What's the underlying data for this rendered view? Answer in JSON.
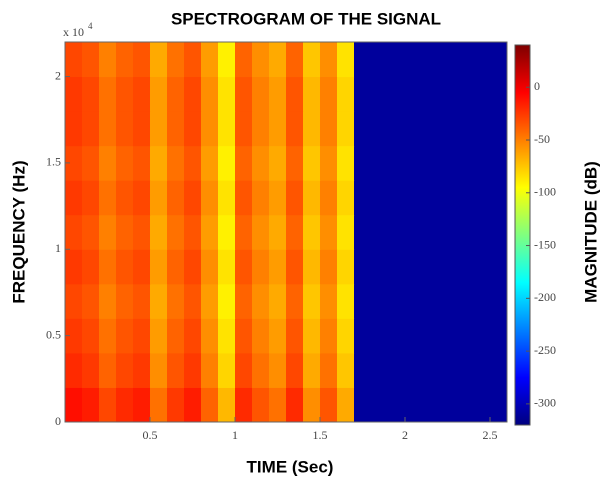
{
  "chart_data": {
    "type": "spectrogram",
    "title": "SPECTROGRAM OF THE SIGNAL",
    "x_label": "TIME (Sec)",
    "y_label": "FREQUENCY (Hz)",
    "colorbar_label": "MAGNITUDE (dB)",
    "y_multiplier": {
      "base": "x 10",
      "exponent": "4"
    },
    "colormap": "jet",
    "x_edges": [
      0,
      0.1,
      0.2,
      0.3,
      0.4,
      0.5,
      0.6,
      0.7,
      0.8,
      0.9,
      1.0,
      1.1,
      1.2,
      1.3,
      1.4,
      1.5,
      1.6,
      1.7,
      2.6
    ],
    "y_edges": [
      0,
      2000,
      4000,
      6000,
      8000,
      10000,
      12000,
      14000,
      16000,
      18000,
      20000,
      22000
    ],
    "values": [
      [
        -10,
        -15,
        -30,
        -20,
        -15,
        -45,
        -25,
        -15,
        -40,
        -70,
        -20,
        -35,
        -45,
        -20,
        -55,
        -35,
        -65,
        -310
      ],
      [
        -20,
        -25,
        -40,
        -30,
        -25,
        -55,
        -35,
        -25,
        -50,
        -80,
        -30,
        -45,
        -55,
        -30,
        -65,
        -45,
        -75,
        -310
      ],
      [
        -25,
        -30,
        -45,
        -35,
        -30,
        -60,
        -40,
        -30,
        -55,
        -85,
        -35,
        -50,
        -60,
        -35,
        -70,
        -50,
        -80,
        -310
      ],
      [
        -30,
        -35,
        -50,
        -40,
        -35,
        -65,
        -45,
        -35,
        -60,
        -90,
        -40,
        -55,
        -65,
        -40,
        -75,
        -55,
        -85,
        -310
      ],
      [
        -25,
        -30,
        -45,
        -35,
        -30,
        -60,
        -40,
        -30,
        -55,
        -85,
        -35,
        -50,
        -60,
        -35,
        -70,
        -50,
        -80,
        -310
      ],
      [
        -30,
        -35,
        -50,
        -40,
        -35,
        -65,
        -45,
        -35,
        -60,
        -90,
        -40,
        -55,
        -65,
        -40,
        -75,
        -55,
        -85,
        -310
      ],
      [
        -25,
        -30,
        -45,
        -35,
        -30,
        -60,
        -40,
        -30,
        -55,
        -85,
        -35,
        -50,
        -60,
        -35,
        -70,
        -50,
        -80,
        -310
      ],
      [
        -30,
        -35,
        -50,
        -40,
        -35,
        -65,
        -45,
        -35,
        -60,
        -90,
        -40,
        -55,
        -65,
        -40,
        -75,
        -55,
        -85,
        -310
      ],
      [
        -25,
        -30,
        -45,
        -35,
        -30,
        -60,
        -40,
        -30,
        -55,
        -85,
        -35,
        -50,
        -60,
        -35,
        -70,
        -50,
        -80,
        -310
      ],
      [
        -25,
        -30,
        -45,
        -35,
        -30,
        -60,
        -40,
        -30,
        -55,
        -85,
        -35,
        -50,
        -60,
        -35,
        -70,
        -50,
        -80,
        -310
      ],
      [
        -30,
        -35,
        -50,
        -40,
        -35,
        -65,
        -45,
        -35,
        -60,
        -90,
        -40,
        -55,
        -65,
        -40,
        -75,
        -55,
        -85,
        -310
      ]
    ],
    "xlim": [
      0,
      2.6
    ],
    "xticks": [
      0.5,
      1,
      1.5,
      2,
      2.5
    ],
    "ylim": [
      0,
      22000
    ],
    "yticks": [
      0,
      {
        "value": 5000,
        "label": "0.5"
      },
      {
        "value": 10000,
        "label": "1"
      },
      {
        "value": 15000,
        "label": "1.5"
      },
      {
        "value": 20000,
        "label": "2"
      }
    ],
    "clim": [
      -320,
      40
    ],
    "cticks": [
      0,
      -50,
      -100,
      -150,
      -200,
      -250,
      -300
    ]
  }
}
